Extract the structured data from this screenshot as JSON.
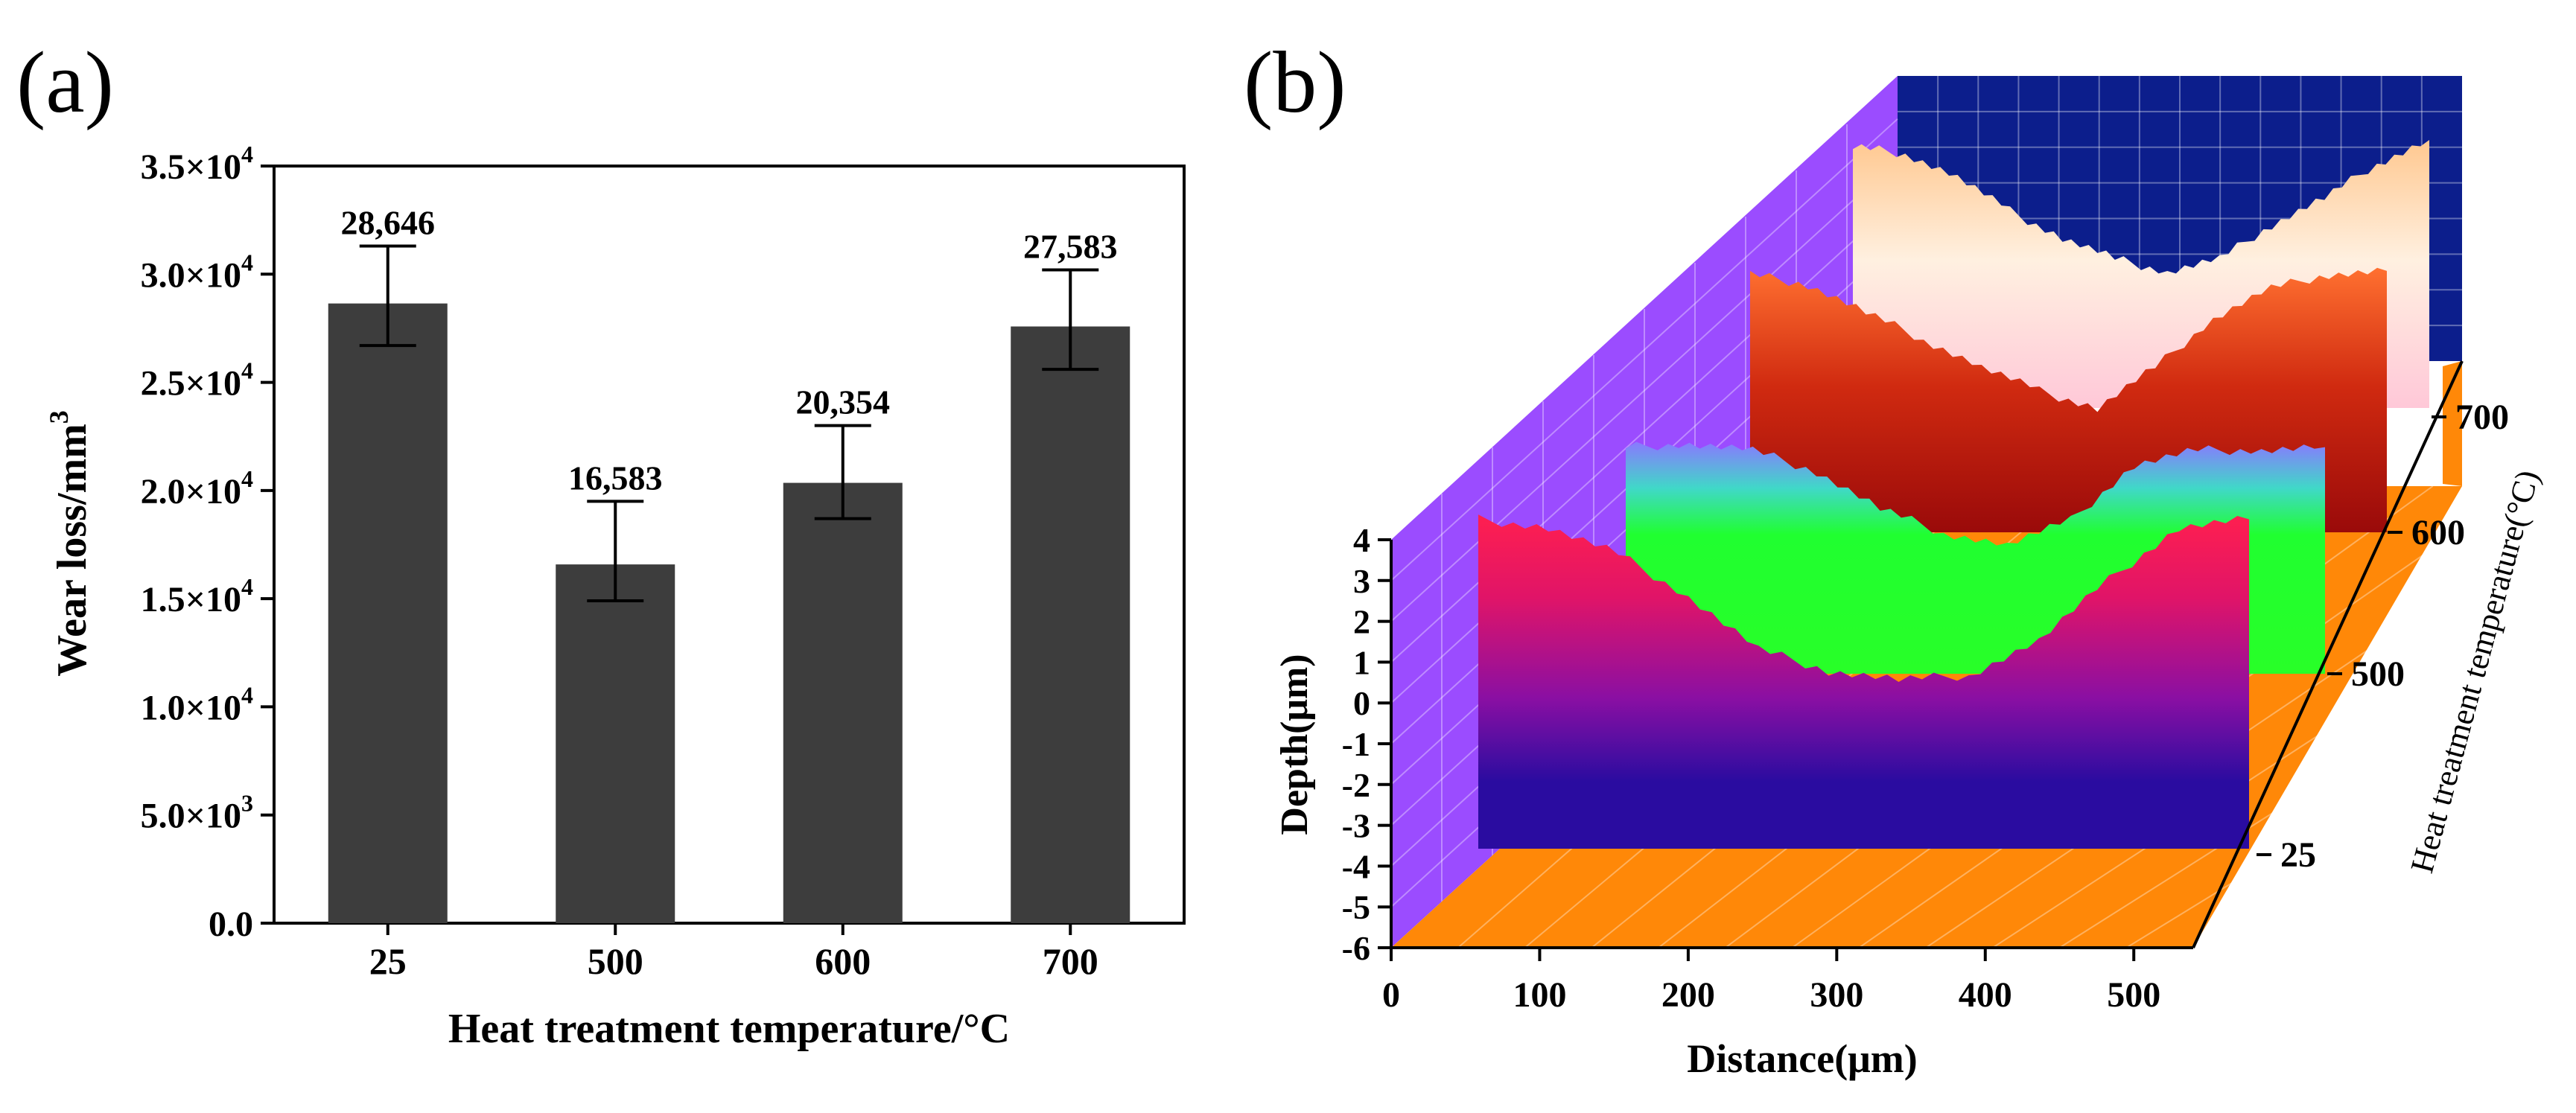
{
  "chart_data": [
    {
      "panel_label": "(a)",
      "type": "bar",
      "categories": [
        "25",
        "500",
        "600",
        "700"
      ],
      "values": [
        28646,
        16583,
        20354,
        27583
      ],
      "value_labels": [
        "28,646",
        "16,583",
        "20,354",
        "27,583"
      ],
      "error_bars": [
        {
          "low": 26700,
          "high": 31300
        },
        {
          "low": 14900,
          "high": 19500
        },
        {
          "low": 18700,
          "high": 23000
        },
        {
          "low": 25600,
          "high": 30200
        }
      ],
      "xlabel": "Heat treatment temperature/°C",
      "ylabel": {
        "main": "Wear loss/mm",
        "sup": "3"
      },
      "ylim": [
        0,
        35000
      ],
      "yticks": [
        {
          "value": 0,
          "mantissa": "0.0",
          "exp": ""
        },
        {
          "value": 5000,
          "mantissa": "5.0×10",
          "exp": "3"
        },
        {
          "value": 10000,
          "mantissa": "1.0×10",
          "exp": "4"
        },
        {
          "value": 15000,
          "mantissa": "1.5×10",
          "exp": "4"
        },
        {
          "value": 20000,
          "mantissa": "2.0×10",
          "exp": "4"
        },
        {
          "value": 25000,
          "mantissa": "2.5×10",
          "exp": "4"
        },
        {
          "value": 30000,
          "mantissa": "3.0×10",
          "exp": "4"
        },
        {
          "value": 35000,
          "mantissa": "3.5×10",
          "exp": "4"
        }
      ],
      "bar_color": "#3d3d3d",
      "grid": false
    },
    {
      "panel_label": "(b)",
      "type": "surface-3d-profiles",
      "xlabel": "Distance(μm)",
      "ylabel": "Depth(μm)",
      "zlabel": "Heat treatment temperature(°C)",
      "x_ticks": [
        "0",
        "100",
        "200",
        "300",
        "400",
        "500"
      ],
      "x_range": [
        0,
        540
      ],
      "depth_ticks": [
        "4",
        "3",
        "2",
        "1",
        "0",
        "-1",
        "-2",
        "-3",
        "-4",
        "-5",
        "-6"
      ],
      "depth_range": [
        -6,
        4
      ],
      "temperature_ticks": [
        "25",
        "500",
        "600",
        "700"
      ],
      "series": [
        {
          "name": "25",
          "colors": {
            "top": "#ff1f4f",
            "mid": "#a0109a",
            "bottom": "#2a0ca0"
          },
          "profile_depth_um": [
            3.0,
            2.8,
            2.2,
            1.2,
            0.0,
            -0.5,
            -0.7,
            -0.6,
            0.2,
            1.6,
            2.8,
            3.0
          ]
        },
        {
          "name": "500",
          "colors": {
            "top": "#7f7cff",
            "mid": "#20ff20",
            "bottom": "#28ff28"
          },
          "profile_depth_um": [
            2.8,
            2.9,
            2.7,
            2.0,
            0.8,
            0.0,
            -0.4,
            0.4,
            2.2,
            2.7,
            2.7,
            2.8
          ]
        },
        {
          "name": "600",
          "colors": {
            "top": "#ff6020",
            "mid": "#d02a10",
            "bottom": "#9a0a0a"
          },
          "profile_depth_um": [
            2.9,
            2.6,
            1.8,
            1.0,
            0.2,
            -0.5,
            -1.0,
            0.2,
            1.6,
            2.5,
            2.9,
            3.0
          ]
        },
        {
          "name": "700",
          "colors": {
            "top": "#ffc890",
            "mid": "#ffd0d8",
            "bottom": "#ffc8d8"
          },
          "profile_depth_um": [
            3.1,
            2.9,
            2.2,
            1.2,
            0.4,
            -0.2,
            -0.6,
            -0.2,
            0.8,
            1.6,
            2.6,
            3.3
          ]
        }
      ],
      "wall_colors": {
        "left": "#9b4cff",
        "floor": "#ff8808",
        "back": "#0c1e8c"
      }
    }
  ]
}
